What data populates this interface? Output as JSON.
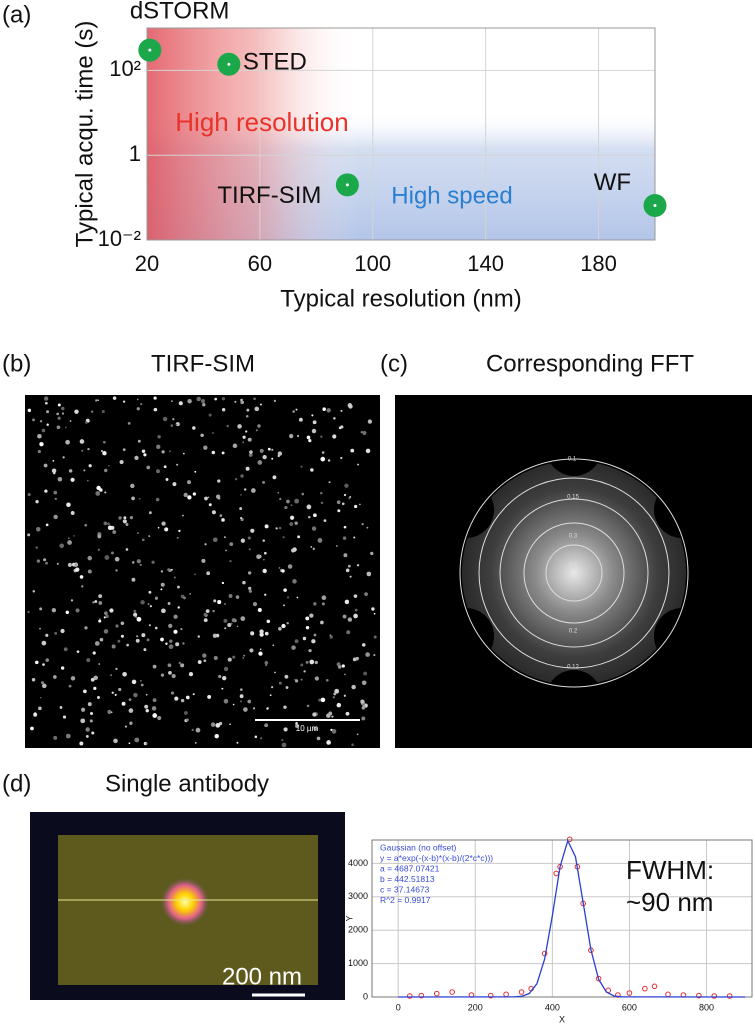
{
  "panel_labels": [
    "(a)",
    "(b)",
    "(c)",
    "(d)"
  ],
  "chart_data": [
    {
      "type": "scatter",
      "log_y": true,
      "grid": true,
      "x_label": "Typical resolution (nm)",
      "y_label": "Typical acqu. time (s)",
      "xlim": [
        20,
        200
      ],
      "xticks": [
        20,
        60,
        100,
        140,
        180
      ],
      "ylim": [
        0.01,
        1000
      ],
      "yticks": [
        {
          "value": 0.01,
          "label": "10⁻²"
        },
        1,
        {
          "value": 100,
          "label": "10²"
        }
      ],
      "annotations": [
        "High resolution",
        "High speed"
      ],
      "series": [
        {
          "color": "#1aa84a",
          "x": [
            21,
            49,
            91,
            200
          ],
          "values": [
            300,
            140,
            0.2,
            0.065
          ],
          "point_labels": [
            "dSTORM",
            "STED",
            "TIRF-SIM",
            "WF"
          ]
        }
      ]
    },
    {
      "type": "scatter",
      "grid": true,
      "x_label": "X",
      "y_label": "Y",
      "xlim": [
        -68,
        918
      ],
      "xticks": [
        0,
        200,
        400,
        600,
        800
      ],
      "ylim": [
        0,
        4700
      ],
      "yticks": [
        0,
        1000,
        2000,
        3000,
        4000
      ],
      "fit_text": [
        "Gaussian (no offset)",
        "y = a*exp(-(x-b)*(x-b)/(2*c*c)))",
        "a = 4687.07421",
        "b = 442.51813",
        "c = 37.14673",
        "R^2 = 0.9917"
      ],
      "annotation": [
        "FWHM:",
        "~90 nm"
      ],
      "series": [
        {
          "mode": "markers",
          "color": "#e03030",
          "x": [
            30,
            60,
            100,
            140,
            190,
            240,
            280,
            320,
            345,
            380,
            410,
            420,
            445,
            465,
            480,
            500,
            520,
            545,
            570,
            600,
            640,
            665,
            700,
            740,
            780,
            820,
            860
          ],
          "values": [
            30,
            40,
            100,
            150,
            60,
            40,
            80,
            150,
            250,
            1300,
            3700,
            3900,
            4720,
            3900,
            2800,
            1400,
            550,
            200,
            60,
            120,
            250,
            320,
            80,
            60,
            40,
            30,
            30
          ]
        },
        {
          "mode": "line",
          "color": "#2b3fd0",
          "x": [
            0,
            300,
            320,
            340,
            360,
            380,
            400,
            420,
            440,
            460,
            480,
            500,
            520,
            540,
            560,
            580,
            900
          ],
          "values": [
            0,
            3,
            20,
            104,
            398,
            1139,
            2437,
            3902,
            4677,
            4196,
            2817,
            1414,
            532,
            150,
            31,
            5,
            0
          ]
        }
      ]
    }
  ],
  "images": {
    "b": {
      "title": "TIRF-SIM",
      "scale_bar": "10 µm"
    },
    "c": {
      "title": "Corresponding FFT",
      "ring_labels": [
        "0.1",
        "0.15",
        "0.3",
        "0.6",
        "0.2",
        "0.12"
      ]
    },
    "d": {
      "title": "Single antibody",
      "scale_bar": "200 nm"
    }
  }
}
